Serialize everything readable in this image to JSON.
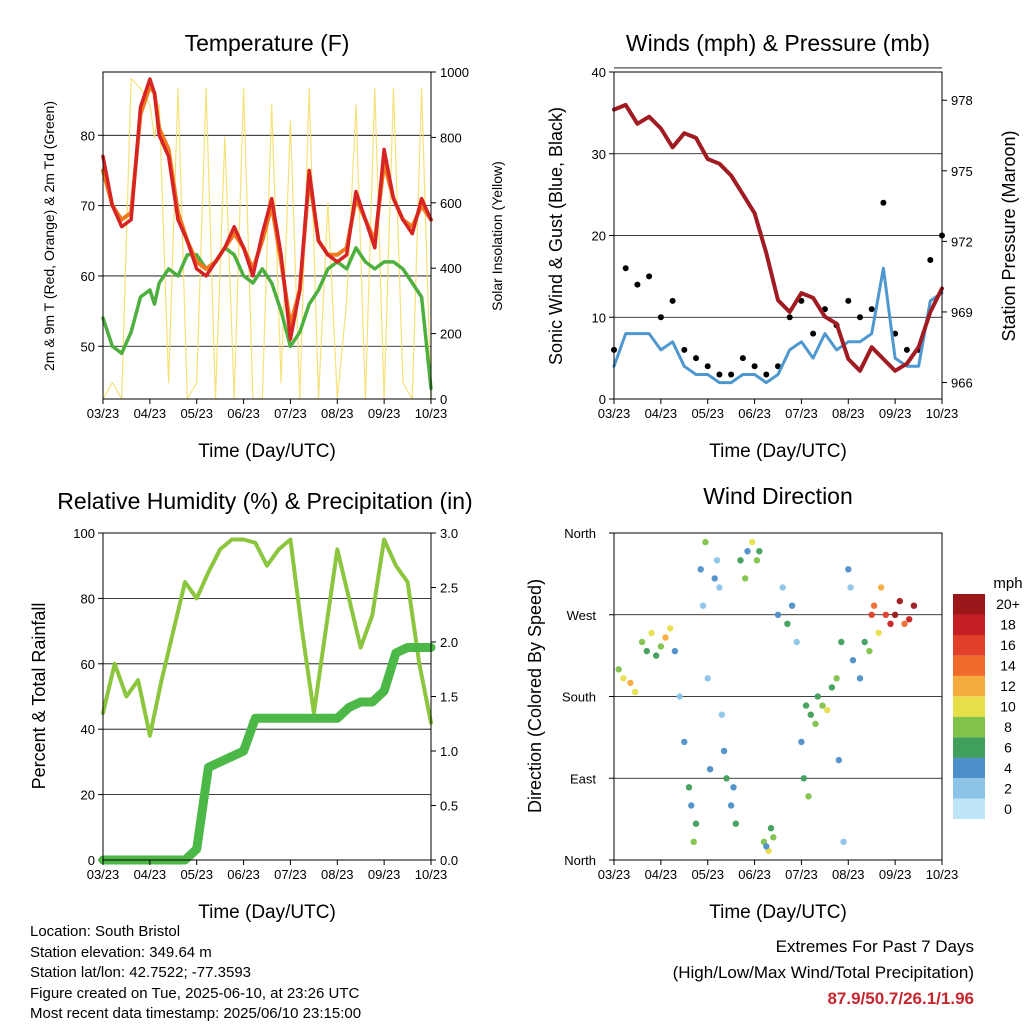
{
  "colors": {
    "temp_2m": "#d62424",
    "temp_9m": "#f07a1e",
    "dewpoint": "#4caf3e",
    "solar": "#f5de6a",
    "wind": "#000000",
    "gust": "#4f98cf",
    "pressure": "#a01c22",
    "rh": "#8cc63f",
    "precip": "#4cb848",
    "extremes_text": "#c4262e"
  },
  "date_ticks": [
    "03/23",
    "04/23",
    "05/23",
    "06/23",
    "07/23",
    "08/23",
    "09/23",
    "10/23"
  ],
  "panels": {
    "temperature": {
      "title": "Temperature (F)",
      "xlabel": "Time (Day/UTC)",
      "ylabel_left": "2m & 9m T (Red, Orange) & 2m Td (Green)",
      "ylabel_right": "Solar Insolation (Yellow)",
      "left_ticks": [
        "50",
        "60",
        "70",
        "80"
      ],
      "right_ticks": [
        "0",
        "200",
        "400",
        "600",
        "800",
        "1000"
      ]
    },
    "winds": {
      "title": "Winds (mph) & Pressure (mb)",
      "xlabel": "Time (Day/UTC)",
      "ylabel_left": "Sonic Wind & Gust (Blue, Black)",
      "ylabel_right": "Station Pressure (Maroon)",
      "left_ticks": [
        "0",
        "10",
        "20",
        "30",
        "40"
      ],
      "right_ticks": [
        "966",
        "969",
        "972",
        "975",
        "978"
      ]
    },
    "humidity": {
      "title": "Relative Humidity (%) & Precipitation (in)",
      "xlabel": "Time (Day/UTC)",
      "ylabel_left": "Percent & Total Rainfall",
      "left_ticks": [
        "0",
        "20",
        "40",
        "60",
        "80",
        "100"
      ],
      "right_ticks": [
        "0.0",
        "0.5",
        "1.0",
        "1.5",
        "2.0",
        "2.5",
        "3.0"
      ]
    },
    "direction": {
      "title": "Wind Direction",
      "xlabel": "Time (Day/UTC)",
      "ylabel_left": "Direction (Colored By Speed)",
      "dir_ticks": [
        "North",
        "East",
        "South",
        "West",
        "North"
      ],
      "legend_title": "mph",
      "legend_labels": [
        "0",
        "2",
        "4",
        "6",
        "8",
        "10",
        "12",
        "14",
        "16",
        "18",
        "20+"
      ],
      "legend_colors": [
        "#bfe6f7",
        "#8cc4e8",
        "#4c8fc9",
        "#3f9f5b",
        "#80c24a",
        "#e6df4a",
        "#f5ac3c",
        "#ef6a2b",
        "#e0402a",
        "#c41f24",
        "#9b1719"
      ]
    }
  },
  "chart_data": [
    {
      "type": "line",
      "title": "Temperature (F)",
      "xlabel": "Time (Day/UTC)",
      "ylabel": "2m & 9m T (Red, Orange) & 2m Td (Green)",
      "y2label": "Solar Insolation (Yellow)",
      "xlim": [
        0,
        7
      ],
      "ylim": [
        42.5,
        89
      ],
      "y2lim": [
        0,
        1000
      ],
      "grid": true,
      "x": [
        0,
        0.2,
        0.4,
        0.6,
        0.8,
        1.0,
        1.1,
        1.2,
        1.4,
        1.6,
        1.8,
        2.0,
        2.2,
        2.4,
        2.6,
        2.8,
        3.0,
        3.2,
        3.4,
        3.6,
        3.8,
        4.0,
        4.2,
        4.4,
        4.6,
        4.8,
        5.0,
        5.2,
        5.4,
        5.6,
        5.8,
        6.0,
        6.2,
        6.4,
        6.6,
        6.8,
        7.0
      ],
      "series": [
        {
          "name": "2m T",
          "values": [
            77,
            70,
            67,
            68,
            84,
            88,
            86,
            80,
            77,
            68,
            65,
            61,
            60,
            62,
            64,
            67,
            64,
            60,
            66,
            71,
            63,
            51,
            58,
            75,
            65,
            63,
            62,
            63,
            72,
            68,
            64,
            78,
            71,
            68,
            66,
            71,
            68
          ]
        },
        {
          "name": "9m T",
          "values": [
            75,
            70,
            68,
            69,
            83,
            87,
            86,
            81,
            78,
            69,
            65,
            62,
            61,
            62,
            64,
            66,
            64,
            61,
            65,
            70,
            62,
            53,
            58,
            74,
            65,
            63,
            63,
            64,
            71,
            68,
            65,
            76,
            71,
            68,
            67,
            70,
            68
          ]
        },
        {
          "name": "2m Td",
          "values": [
            54,
            50,
            49,
            52,
            57,
            58,
            56,
            59,
            61,
            60,
            63,
            63,
            61,
            62,
            64,
            63,
            60,
            59,
            61,
            59,
            55,
            50,
            52,
            56,
            58,
            61,
            62,
            61,
            64,
            62,
            61,
            62,
            62,
            61,
            59,
            57,
            44
          ]
        },
        {
          "name": "Solar",
          "axis": "y2",
          "values": [
            0,
            50,
            0,
            980,
            950,
            900,
            800,
            900,
            50,
            950,
            0,
            50,
            950,
            0,
            800,
            0,
            950,
            0,
            0,
            900,
            50,
            850,
            0,
            950,
            0,
            600,
            0,
            300,
            900,
            0,
            950,
            0,
            950,
            50,
            0,
            950,
            0
          ]
        }
      ]
    },
    {
      "type": "line",
      "title": "Winds (mph) & Pressure (mb)",
      "xlabel": "Time (Day/UTC)",
      "ylabel": "Sonic Wind & Gust (Blue, Black)",
      "y2label": "Station Pressure (Maroon)",
      "xlim": [
        0,
        7
      ],
      "ylim": [
        0,
        40
      ],
      "y2lim": [
        965.3,
        979.2
      ],
      "grid": true,
      "x": [
        0,
        0.25,
        0.5,
        0.75,
        1.0,
        1.25,
        1.5,
        1.75,
        2.0,
        2.25,
        2.5,
        2.75,
        3.0,
        3.25,
        3.5,
        3.75,
        4.0,
        4.25,
        4.5,
        4.75,
        5.0,
        5.25,
        5.5,
        5.75,
        6.0,
        6.25,
        6.5,
        6.75,
        7.0
      ],
      "series": [
        {
          "name": "Wind",
          "values": [
            6,
            16,
            14,
            15,
            10,
            12,
            6,
            5,
            4,
            3,
            3,
            5,
            4,
            3,
            4,
            10,
            12,
            8,
            11,
            9,
            12,
            10,
            11,
            24,
            8,
            6,
            6,
            17,
            20
          ]
        },
        {
          "name": "Gust",
          "values": [
            4,
            8,
            8,
            8,
            6,
            7,
            4,
            3,
            3,
            2,
            2,
            3,
            3,
            2,
            3,
            6,
            7,
            5,
            8,
            6,
            7,
            7,
            8,
            16,
            5,
            4,
            4,
            12,
            13
          ]
        },
        {
          "name": "Pressure",
          "axis": "y2",
          "values": [
            977.6,
            977.8,
            977.0,
            977.3,
            976.8,
            976.0,
            976.6,
            976.4,
            975.5,
            975.3,
            974.8,
            974.0,
            973.2,
            971.5,
            969.5,
            969.0,
            969.8,
            969.6,
            968.8,
            968.5,
            967.0,
            966.5,
            967.5,
            967.0,
            966.5,
            966.8,
            967.5,
            969.0,
            970.0
          ]
        }
      ]
    },
    {
      "type": "line",
      "title": "Relative Humidity (%) & Precipitation (in)",
      "xlabel": "Time (Day/UTC)",
      "ylabel": "Percent & Total Rainfall",
      "ylim": [
        0,
        100
      ],
      "y2lim": [
        0,
        3
      ],
      "xlim": [
        0,
        7
      ],
      "grid": true,
      "x": [
        0,
        0.25,
        0.5,
        0.75,
        1.0,
        1.25,
        1.5,
        1.75,
        2.0,
        2.25,
        2.5,
        2.75,
        3.0,
        3.25,
        3.5,
        3.75,
        4.0,
        4.25,
        4.5,
        4.75,
        5.0,
        5.25,
        5.5,
        5.75,
        6.0,
        6.25,
        6.5,
        6.75,
        7.0
      ],
      "series": [
        {
          "name": "RH",
          "values": [
            45,
            60,
            50,
            55,
            38,
            55,
            70,
            85,
            80,
            88,
            95,
            98,
            98,
            97,
            90,
            95,
            98,
            70,
            45,
            70,
            95,
            80,
            65,
            75,
            98,
            90,
            85,
            60,
            42
          ]
        },
        {
          "name": "Precip",
          "axis": "y2",
          "values": [
            0,
            0,
            0,
            0,
            0,
            0,
            0,
            0,
            0.1,
            0.85,
            0.9,
            0.95,
            1.0,
            1.3,
            1.3,
            1.3,
            1.3,
            1.3,
            1.3,
            1.3,
            1.3,
            1.4,
            1.45,
            1.45,
            1.55,
            1.9,
            1.95,
            1.95,
            1.95
          ]
        }
      ]
    },
    {
      "type": "scatter",
      "title": "Wind Direction",
      "xlabel": "Time (Day/UTC)",
      "ylabel": "Direction (Colored By Speed)",
      "xlim": [
        0,
        7
      ],
      "ylim": [
        0,
        360
      ],
      "colorbar": "mph",
      "grid": true,
      "points": [
        [
          0.1,
          210,
          8
        ],
        [
          0.2,
          200,
          10
        ],
        [
          0.35,
          195,
          12
        ],
        [
          0.45,
          185,
          10
        ],
        [
          0.6,
          240,
          8
        ],
        [
          0.7,
          230,
          6
        ],
        [
          0.8,
          250,
          10
        ],
        [
          0.9,
          225,
          6
        ],
        [
          1.0,
          235,
          8
        ],
        [
          1.1,
          245,
          12
        ],
        [
          1.2,
          255,
          10
        ],
        [
          1.3,
          230,
          4
        ],
        [
          1.4,
          180,
          2
        ],
        [
          1.5,
          130,
          4
        ],
        [
          1.6,
          80,
          6
        ],
        [
          1.65,
          60,
          4
        ],
        [
          1.7,
          20,
          8
        ],
        [
          1.75,
          40,
          6
        ],
        [
          1.85,
          320,
          4
        ],
        [
          1.9,
          280,
          2
        ],
        [
          1.95,
          350,
          8
        ],
        [
          2.0,
          200,
          2
        ],
        [
          2.05,
          100,
          4
        ],
        [
          2.15,
          310,
          4
        ],
        [
          2.2,
          330,
          2
        ],
        [
          2.25,
          300,
          2
        ],
        [
          2.3,
          160,
          2
        ],
        [
          2.35,
          120,
          4
        ],
        [
          2.4,
          90,
          6
        ],
        [
          2.5,
          60,
          4
        ],
        [
          2.55,
          80,
          4
        ],
        [
          2.6,
          40,
          6
        ],
        [
          2.7,
          330,
          6
        ],
        [
          2.8,
          310,
          8
        ],
        [
          2.85,
          340,
          4
        ],
        [
          2.95,
          350,
          10
        ],
        [
          3.05,
          330,
          8
        ],
        [
          3.1,
          340,
          6
        ],
        [
          3.2,
          20,
          8
        ],
        [
          3.3,
          10,
          10
        ],
        [
          3.4,
          25,
          8
        ],
        [
          3.35,
          35,
          6
        ],
        [
          3.25,
          15,
          4
        ],
        [
          3.5,
          270,
          4
        ],
        [
          3.6,
          300,
          2
        ],
        [
          3.7,
          260,
          6
        ],
        [
          3.8,
          280,
          4
        ],
        [
          3.9,
          240,
          2
        ],
        [
          4.0,
          130,
          4
        ],
        [
          4.05,
          90,
          6
        ],
        [
          4.1,
          170,
          6
        ],
        [
          4.15,
          70,
          8
        ],
        [
          4.2,
          160,
          6
        ],
        [
          4.3,
          150,
          8
        ],
        [
          4.35,
          180,
          6
        ],
        [
          4.45,
          170,
          8
        ],
        [
          4.55,
          165,
          10
        ],
        [
          4.65,
          190,
          6
        ],
        [
          4.75,
          200,
          8
        ],
        [
          4.8,
          110,
          4
        ],
        [
          4.85,
          240,
          6
        ],
        [
          4.9,
          20,
          2
        ],
        [
          5.0,
          320,
          4
        ],
        [
          5.05,
          300,
          2
        ],
        [
          5.1,
          220,
          4
        ],
        [
          5.25,
          200,
          4
        ],
        [
          5.35,
          240,
          6
        ],
        [
          5.45,
          230,
          8
        ],
        [
          5.5,
          270,
          16
        ],
        [
          5.55,
          280,
          14
        ],
        [
          5.65,
          250,
          10
        ],
        [
          5.7,
          300,
          12
        ],
        [
          5.8,
          270,
          16
        ],
        [
          5.9,
          260,
          18
        ],
        [
          6.0,
          270,
          20
        ],
        [
          6.1,
          285,
          20
        ],
        [
          6.2,
          260,
          14
        ],
        [
          6.3,
          265,
          18
        ],
        [
          6.4,
          280,
          20
        ]
      ]
    }
  ],
  "info": {
    "location": "Location: South Bristol",
    "elevation": "Station elevation: 349.64 m",
    "latlon": "Station lat/lon: 42.7522; -77.3593",
    "created": "Figure created on Tue, 2025-06-10, at 23:26 UTC",
    "recent": "Most recent data timestamp: 2025/06/10 23:15:00"
  },
  "extremes": {
    "title": "Extremes For Past 7 Days",
    "subtitle": "(High/Low/Max Wind/Total Precipitation)",
    "values": "87.9/50.7/26.1/1.96"
  }
}
